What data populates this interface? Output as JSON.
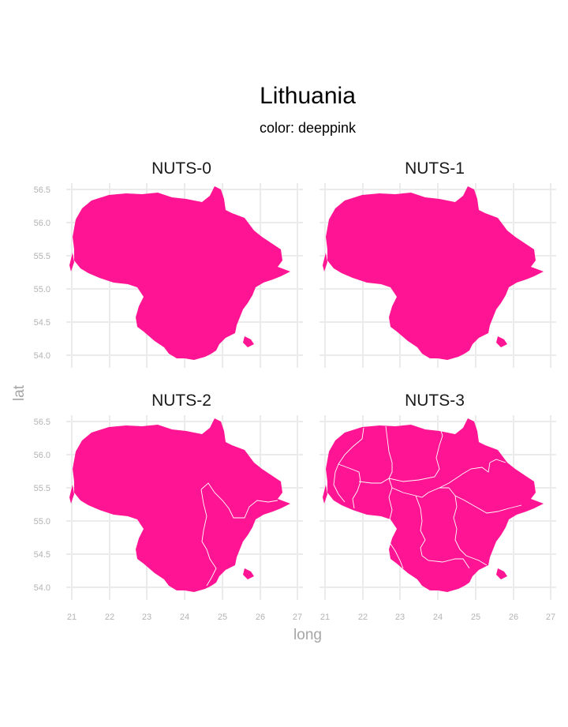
{
  "title": "Lithuania",
  "subtitle": "color: deeppink",
  "fill_color": "#ff1493",
  "x_axis_label": "long",
  "y_axis_label": "lat",
  "x_ticks": [
    "21",
    "22",
    "23",
    "24",
    "25",
    "26",
    "27"
  ],
  "y_ticks": [
    "56.5",
    "56.0",
    "55.5",
    "55.0",
    "54.5",
    "54.0"
  ],
  "panels": [
    {
      "label": "NUTS-0",
      "internal_borders": "none"
    },
    {
      "label": "NUTS-1",
      "internal_borders": "none"
    },
    {
      "label": "NUTS-2",
      "internal_borders": "2 regions"
    },
    {
      "label": "NUTS-3",
      "internal_borders": "10 counties"
    }
  ]
}
